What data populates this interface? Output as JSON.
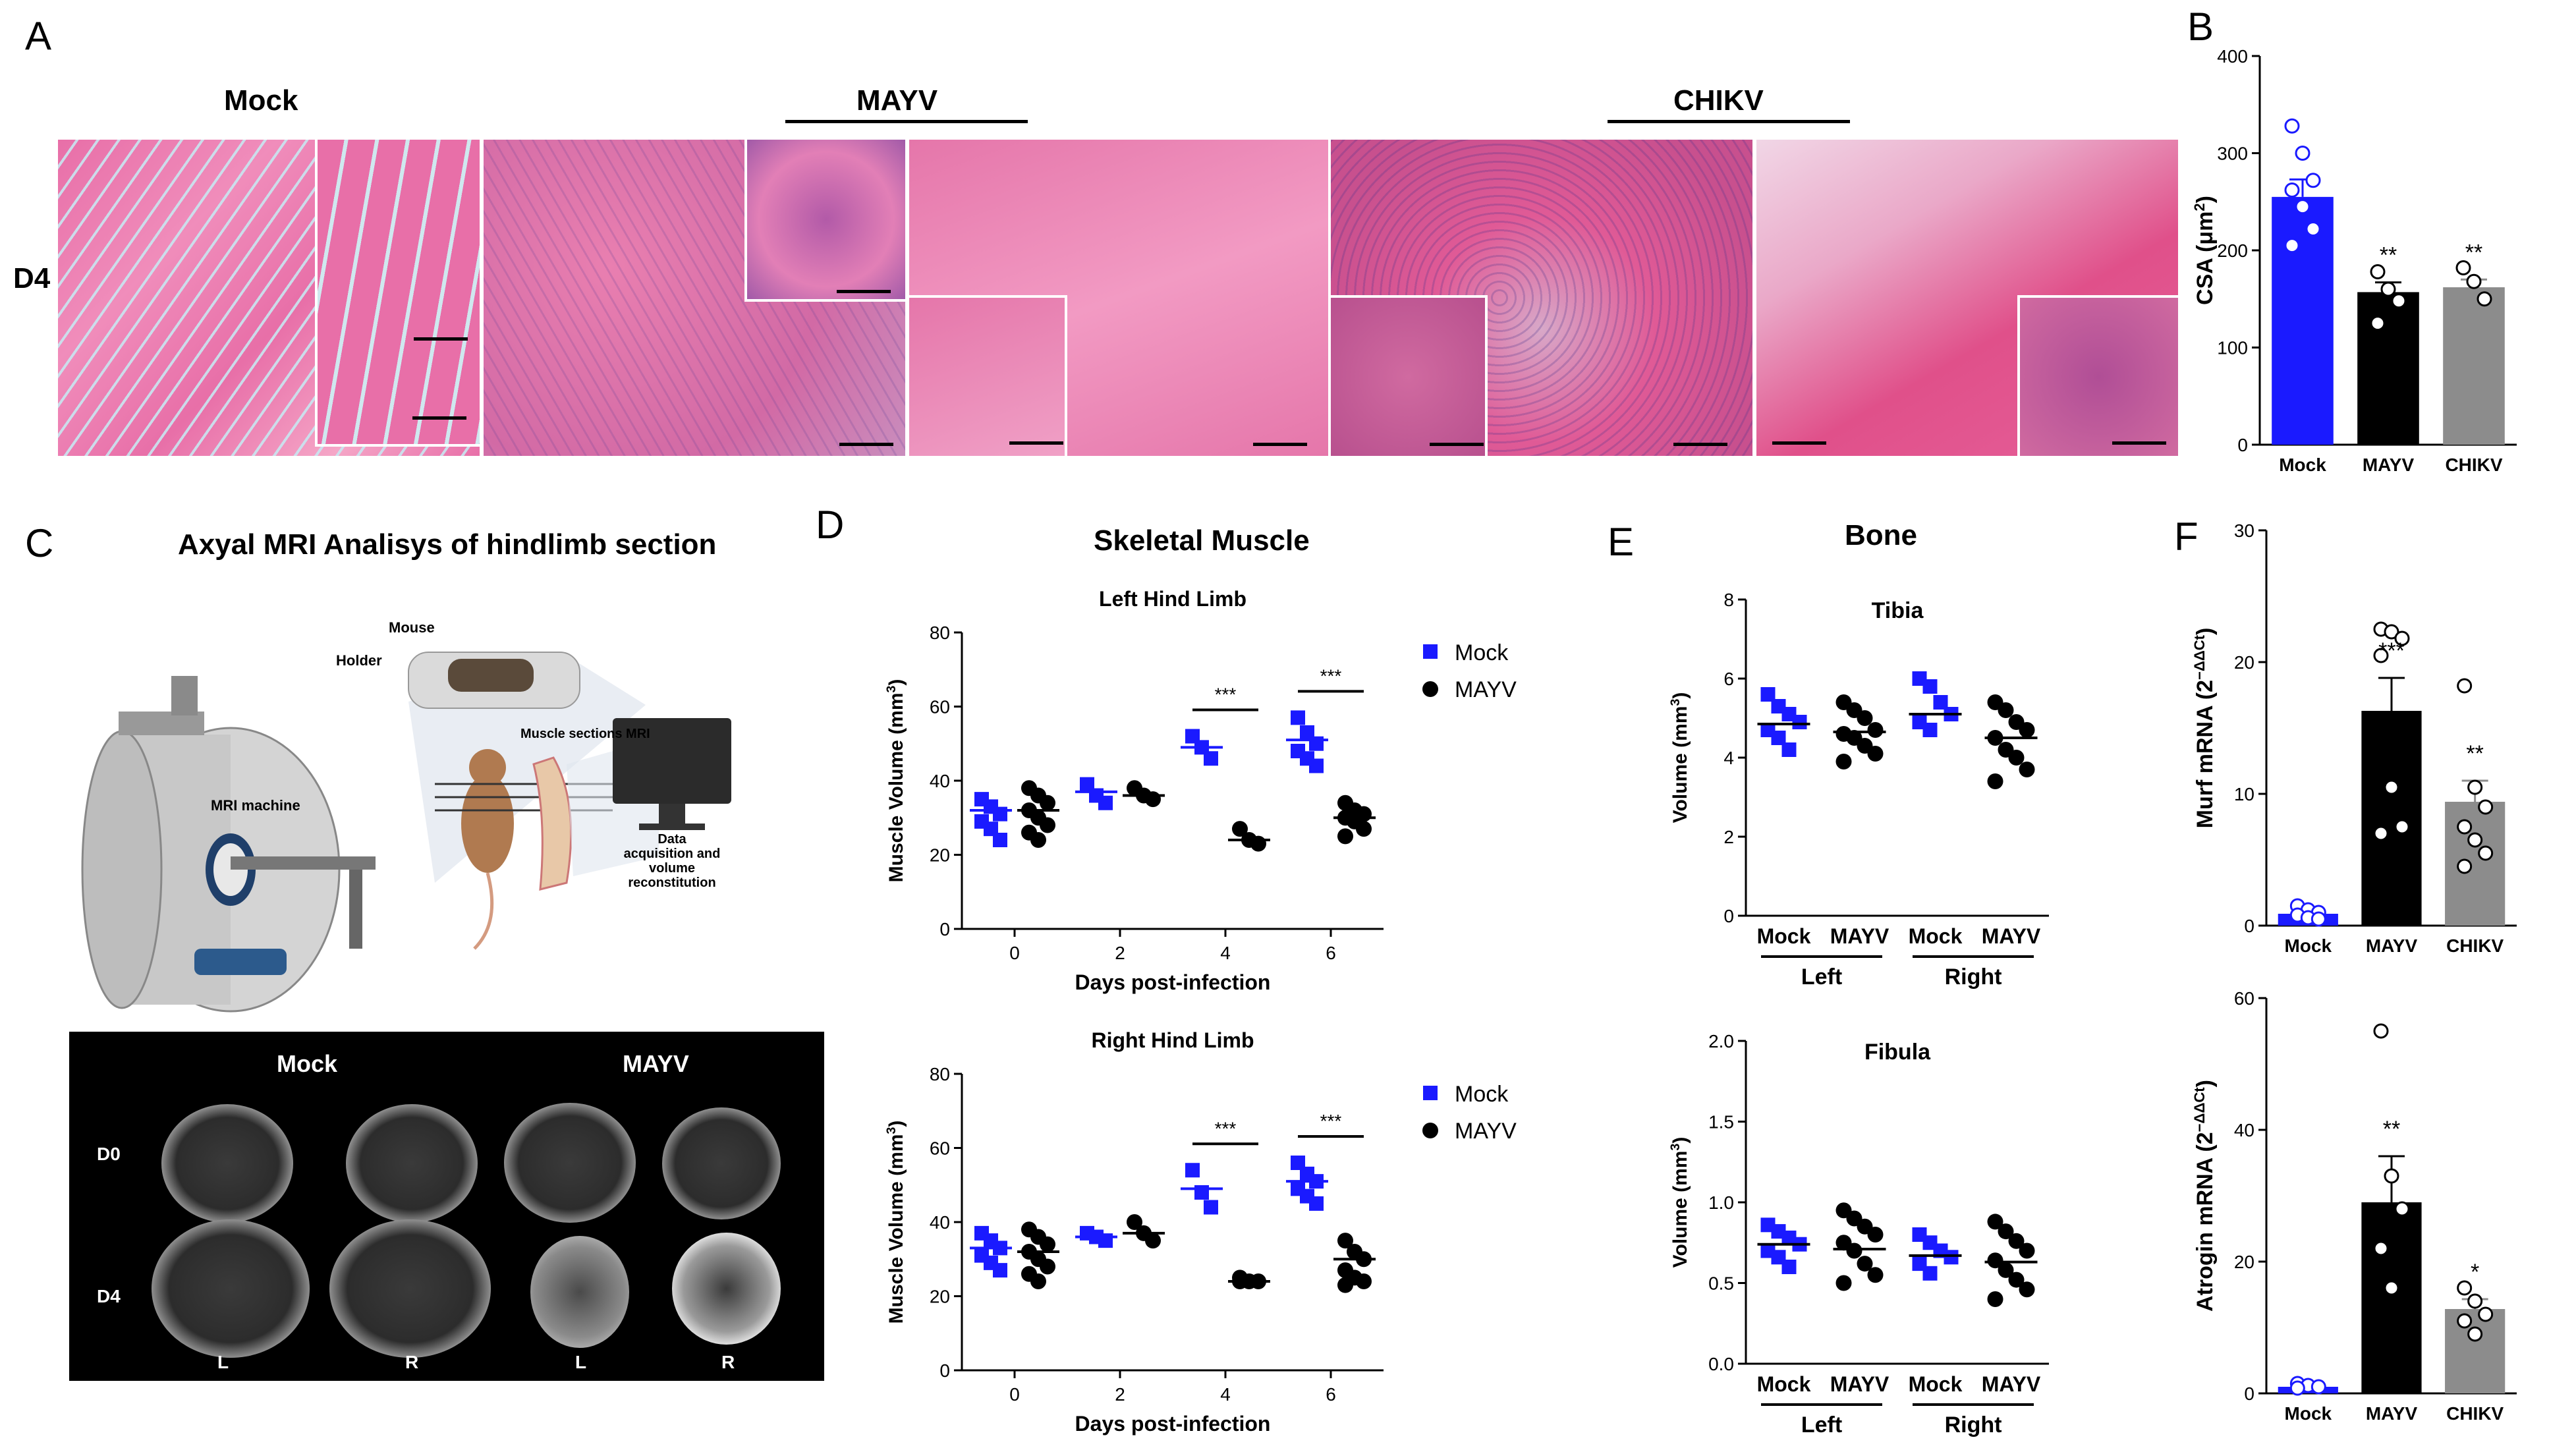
{
  "panel_letters": {
    "a": "A",
    "b": "B",
    "c": "C",
    "d": "D",
    "e": "E",
    "f": "F"
  },
  "panelA": {
    "group_mock": "Mock",
    "group_mayv": "MAYV",
    "group_chikv": "CHIKV",
    "row_label": "D4"
  },
  "panelC": {
    "title": "Axyal MRI Analisys of hindlimb section",
    "illus": {
      "mouse": "Mouse",
      "holder": "Holder",
      "mri_machine": "MRI machine",
      "muscle_sections": "Muscle sections MRI",
      "data_line1": "Data",
      "data_line2": "acquisition and",
      "data_line3": "volume",
      "data_line4": "reconstitution"
    },
    "mri": {
      "col_mock": "Mock",
      "col_mayv": "MAYV",
      "row_d0": "D0",
      "row_d4": "D4",
      "side_l1": "L",
      "side_r1": "R",
      "side_l2": "L",
      "side_r2": "R"
    }
  },
  "panelD": {
    "title": "Skeletal Muscle"
  },
  "panelE": {
    "title": "Bone"
  },
  "colors": {
    "mock": "#1a1aff",
    "mayv": "#000000",
    "chikv": "#8c8c8c",
    "histo": "#e86fa8"
  },
  "chart_data": [
    {
      "id": "B",
      "type": "bar",
      "categories": [
        "Mock",
        "MAYV",
        "CHIKV"
      ],
      "values": [
        255,
        157,
        162
      ],
      "errors": [
        18,
        10,
        8
      ],
      "points": [
        [
          328,
          300,
          272,
          262,
          245,
          222,
          205
        ],
        [
          178,
          160,
          148,
          125
        ],
        [
          182,
          168,
          150
        ]
      ],
      "sig": [
        "",
        "**",
        "**"
      ],
      "ylabel_main": "CSA (μm",
      "ylabel_sup": "2",
      "ylabel_end": ")",
      "ylim": [
        0,
        400
      ],
      "yticks": [
        0,
        100,
        200,
        300,
        400
      ]
    },
    {
      "id": "D1",
      "type": "scatter",
      "title": "Left Hind Limb",
      "xlabel": "Days post-infection",
      "ylabel": "Muscle Volume (mm",
      "ylabel_sup": "3",
      "ylabel_end": ")",
      "ylim": [
        0,
        80
      ],
      "yticks": [
        0,
        20,
        40,
        60,
        80
      ],
      "xticks": [
        0,
        2,
        4,
        6
      ],
      "series": [
        {
          "name": "Mock",
          "points": [
            [
              0,
              [
                35,
                33,
                31,
                29,
                27,
                24
              ]
            ],
            [
              2,
              [
                39,
                36,
                34
              ]
            ],
            [
              4,
              [
                52,
                49,
                46
              ]
            ],
            [
              6,
              [
                57,
                53,
                50,
                48,
                46,
                44
              ]
            ]
          ],
          "means": [
            32,
            37,
            49,
            51
          ]
        },
        {
          "name": "MAYV",
          "points": [
            [
              0,
              [
                38,
                36,
                34,
                32,
                30,
                28,
                26,
                24
              ]
            ],
            [
              2,
              [
                38,
                36,
                35
              ]
            ],
            [
              4,
              [
                27,
                24,
                23
              ]
            ],
            [
              6,
              [
                34,
                32,
                31,
                30,
                29,
                27,
                25
              ]
            ]
          ],
          "means": [
            32,
            36,
            24,
            30
          ]
        }
      ],
      "sig": [
        "",
        "",
        "***",
        "***"
      ]
    },
    {
      "id": "D2",
      "type": "scatter",
      "title": "Right Hind Limb",
      "xlabel": "Days post-infection",
      "ylabel": "Muscle Volume (mm",
      "ylabel_sup": "3",
      "ylabel_end": ")",
      "ylim": [
        0,
        80
      ],
      "yticks": [
        0,
        20,
        40,
        60,
        80
      ],
      "xticks": [
        0,
        2,
        4,
        6
      ],
      "series": [
        {
          "name": "Mock",
          "points": [
            [
              0,
              [
                37,
                35,
                33,
                31,
                29,
                27
              ]
            ],
            [
              2,
              [
                37,
                36,
                35
              ]
            ],
            [
              4,
              [
                54,
                48,
                44
              ]
            ],
            [
              6,
              [
                56,
                53,
                51,
                49,
                47,
                45
              ]
            ]
          ],
          "means": [
            33,
            36,
            49,
            51
          ]
        },
        {
          "name": "MAYV",
          "points": [
            [
              0,
              [
                38,
                36,
                34,
                32,
                30,
                28,
                26,
                24
              ]
            ],
            [
              2,
              [
                40,
                37,
                35
              ]
            ],
            [
              4,
              [
                25,
                24,
                24,
                24
              ]
            ],
            [
              6,
              [
                35,
                32,
                30,
                27,
                25,
                24,
                23
              ]
            ]
          ],
          "means": [
            32,
            37,
            24,
            30
          ]
        }
      ],
      "sig": [
        "",
        "",
        "***",
        "***"
      ]
    },
    {
      "id": "E1",
      "type": "scatter",
      "title": "Tibia",
      "ylabel": "Volume (mm",
      "ylabel_sup": "3",
      "ylabel_end": ")",
      "ylim": [
        0,
        8
      ],
      "yticks": [
        0,
        2,
        4,
        6,
        8
      ],
      "categories": [
        "Mock",
        "MAYV",
        "Mock",
        "MAYV"
      ],
      "groups": [
        "Left",
        "Right"
      ],
      "points": [
        [
          5.6,
          5.3,
          5.1,
          4.9,
          4.7,
          4.5,
          4.2
        ],
        [
          5.4,
          5.2,
          5.0,
          4.7,
          4.6,
          4.5,
          4.3,
          4.1,
          3.9
        ],
        [
          6.0,
          5.8,
          5.4,
          5.1,
          4.9,
          4.7
        ],
        [
          5.4,
          5.2,
          4.9,
          4.7,
          4.5,
          4.2,
          4.0,
          3.7,
          3.4
        ]
      ],
      "means": [
        4.85,
        4.65,
        5.1,
        4.5
      ]
    },
    {
      "id": "E2",
      "type": "scatter",
      "title": "Fibula",
      "ylabel": "Volume (mm",
      "ylabel_sup": "3",
      "ylabel_end": ")",
      "ylim": [
        0,
        2
      ],
      "yticks": [
        "0.0",
        "0.5",
        "1.0",
        "1.5",
        "2.0"
      ],
      "categories": [
        "Mock",
        "MAYV",
        "Mock",
        "MAYV"
      ],
      "groups": [
        "Left",
        "Right"
      ],
      "points": [
        [
          0.86,
          0.82,
          0.78,
          0.74,
          0.7,
          0.66,
          0.6
        ],
        [
          0.95,
          0.9,
          0.85,
          0.8,
          0.75,
          0.7,
          0.62,
          0.55,
          0.5
        ],
        [
          0.8,
          0.75,
          0.7,
          0.66,
          0.62,
          0.56
        ],
        [
          0.88,
          0.82,
          0.76,
          0.7,
          0.64,
          0.58,
          0.52,
          0.46,
          0.4
        ]
      ],
      "means": [
        0.74,
        0.71,
        0.67,
        0.63
      ]
    },
    {
      "id": "F1",
      "type": "bar",
      "categories": [
        "Mock",
        "MAYV",
        "CHIKV"
      ],
      "values": [
        0.9,
        16.3,
        9.4
      ],
      "errors": [
        0.3,
        2.5,
        1.6
      ],
      "points": [
        [
          1.5,
          1.2,
          1.0,
          0.8,
          0.6,
          0.5
        ],
        [
          22.5,
          22.3,
          21.8,
          20.5,
          10.5,
          7.5,
          7.0
        ],
        [
          18.2,
          10.5,
          9.0,
          7.5,
          6.5,
          5.5,
          4.5
        ]
      ],
      "sig": [
        "",
        "***",
        "**"
      ],
      "ylabel_main": "Murf mRNA (2",
      "ylabel_sup": "−ΔΔCt",
      "ylabel_end": ")",
      "ylim": [
        0,
        30
      ],
      "yticks": [
        0,
        10,
        20,
        30
      ]
    },
    {
      "id": "F2",
      "type": "bar",
      "categories": [
        "Mock",
        "MAYV",
        "CHIKV"
      ],
      "values": [
        1,
        29,
        12.8
      ],
      "errors": [
        0.5,
        7,
        1.5
      ],
      "points": [
        [
          1.5,
          1.2,
          1.0,
          0.8
        ],
        [
          55,
          33,
          28,
          22,
          16
        ],
        [
          16,
          14,
          12,
          11,
          9
        ]
      ],
      "sig": [
        "",
        "**",
        "*"
      ],
      "ylabel_main": "Atrogin mRNA (2",
      "ylabel_sup": "−ΔΔCt",
      "ylabel_end": ")",
      "ylim": [
        0,
        60
      ],
      "yticks": [
        0,
        20,
        40,
        60
      ]
    }
  ]
}
